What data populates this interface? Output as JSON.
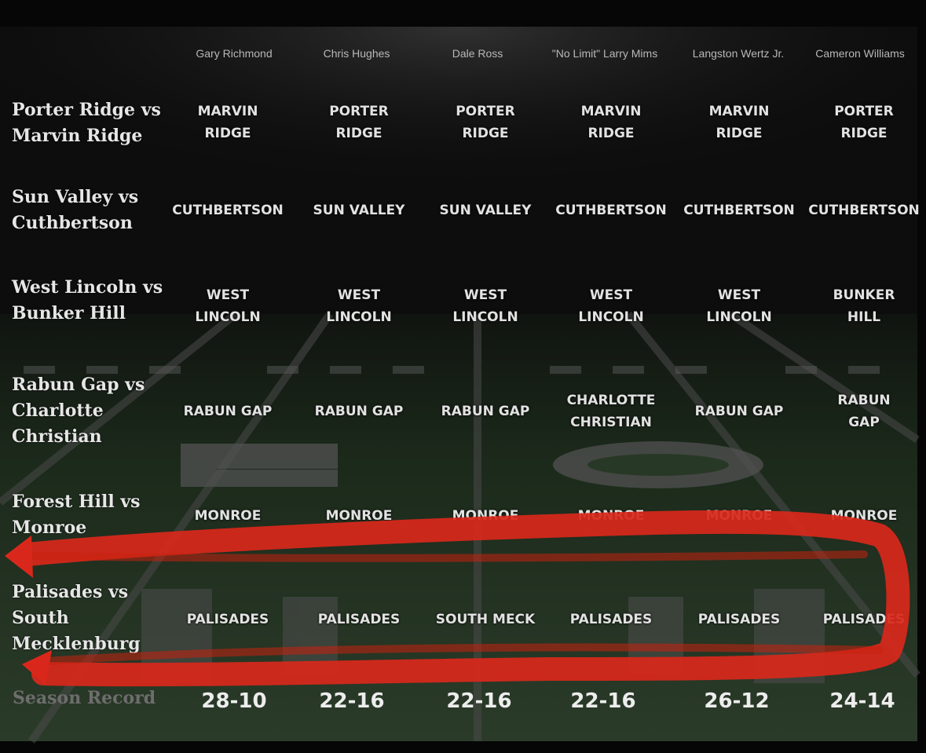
{
  "panelists": [
    "Gary Richmond",
    "Chris Hughes",
    "Dale Ross",
    "\"No Limit\" Larry Mims",
    "Langston Wertz Jr.",
    "Cameron Williams"
  ],
  "games": [
    {
      "matchup": "Porter Ridge vs\nMarvin Ridge",
      "picks": [
        "MARVIN\nRIDGE",
        "PORTER\nRIDGE",
        "PORTER\nRIDGE",
        "MARVIN\nRIDGE",
        "MARVIN\nRIDGE",
        "PORTER\nRIDGE"
      ]
    },
    {
      "matchup": "Sun Valley vs\nCuthbertson",
      "picks": [
        "CUTHBERTSON",
        "SUN VALLEY",
        "SUN VALLEY",
        "CUTHBERTSON",
        "CUTHBERTSON",
        "CUTHBERTSON"
      ]
    },
    {
      "matchup": "West Lincoln vs\nBunker Hill",
      "picks": [
        "WEST\nLINCOLN",
        "WEST\nLINCOLN",
        "WEST\nLINCOLN",
        "WEST\nLINCOLN",
        "WEST\nLINCOLN",
        "BUNKER HILL"
      ]
    },
    {
      "matchup": "Rabun Gap vs\nCharlotte\nChristian",
      "picks": [
        "RABUN GAP",
        "RABUN GAP",
        "RABUN GAP",
        "CHARLOTTE\nCHRISTIAN",
        "RABUN GAP",
        "RABUN GAP"
      ]
    },
    {
      "matchup": "Forest Hill vs\nMonroe",
      "picks": [
        "MONROE",
        "MONROE",
        "MONROE",
        "MONROE",
        "MONROE",
        "MONROE"
      ]
    },
    {
      "matchup": "Palisades vs\nSouth\nMecklenburg",
      "picks": [
        "PALISADES",
        "PALISADES",
        "SOUTH MECK",
        "PALISADES",
        "PALISADES",
        "PALISADES"
      ]
    }
  ],
  "season_record": {
    "label": "Season Record",
    "values": [
      "28-10",
      "22-16",
      "22-16",
      "22-16",
      "26-12",
      "24-14"
    ]
  },
  "colors": {
    "field": "#253524",
    "annotation": "#e0281a",
    "text": "#e2e2e2"
  }
}
